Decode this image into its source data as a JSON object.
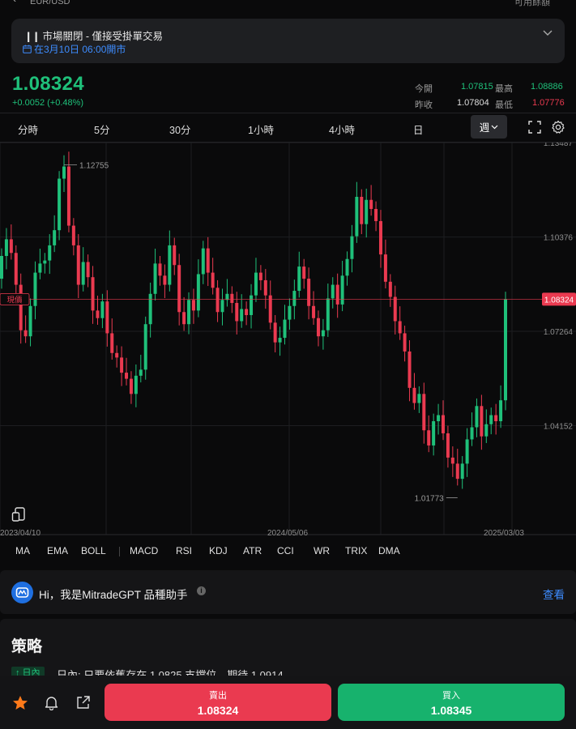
{
  "header": {
    "symbol": "EUR/USD",
    "right_label": "可用餘額"
  },
  "market_status": {
    "title": "市場關閉 - 僅接受掛單交易",
    "open_time": "在3月10日 06:00開市"
  },
  "quote": {
    "price": "1.08324",
    "change": "+0.0052 (+0.48%)",
    "open_label": "今開",
    "open": "1.07815",
    "high_label": "最高",
    "high": "1.08886",
    "prev_close_label": "昨收",
    "prev_close": "1.07804",
    "low_label": "最低",
    "low": "1.07776"
  },
  "timeframes": [
    "分時",
    "5分",
    "30分",
    "1小時",
    "4小時",
    "日"
  ],
  "active_timeframe": "週",
  "chart": {
    "y_ticks": [
      "1.13487",
      "1.10376",
      "1.07264",
      "1.04152"
    ],
    "current_price_label": "1.08324",
    "current_tag": "現價",
    "max_label": "1.12755",
    "min_label": "1.01773",
    "x_ticks": [
      "2023/04/10",
      "2024/05/06",
      "2025/03/03"
    ]
  },
  "chart_data": {
    "type": "candlestick",
    "x_labels": [
      "2023/04/10",
      "2024/05/06",
      "2025/03/03"
    ],
    "y_ticks": [
      1.13487,
      1.10376,
      1.07264,
      1.04152
    ],
    "ylim": [
      1.0056,
      1.1349
    ],
    "current_price": 1.08324,
    "high_marker": 1.12755,
    "low_marker": 1.01773,
    "colors": {
      "up": "#1fc07a",
      "down": "#ea3a50"
    }
  },
  "indicators_left": [
    "MA",
    "EMA",
    "BOLL"
  ],
  "indicators_right": [
    "MACD",
    "RSI",
    "KDJ",
    "ATR",
    "CCI",
    "WR",
    "TRIX",
    "DMA"
  ],
  "gpt": {
    "text": "Hi，我是MitradeGPT 品種助手",
    "link": "查看"
  },
  "strategy": {
    "title": "策略",
    "tag": "↑ 日內",
    "text": "日內: 只要依舊存在 1.0825 支撐位，期待 1.0914 。"
  },
  "trade": {
    "sell_label": "賣出",
    "sell_price": "1.08324",
    "buy_label": "買入",
    "buy_price": "1.08345"
  },
  "colors": {
    "up": "#1fc07a",
    "down": "#ea3a50",
    "accent": "#3d8cff",
    "star": "#ff7a1a"
  }
}
